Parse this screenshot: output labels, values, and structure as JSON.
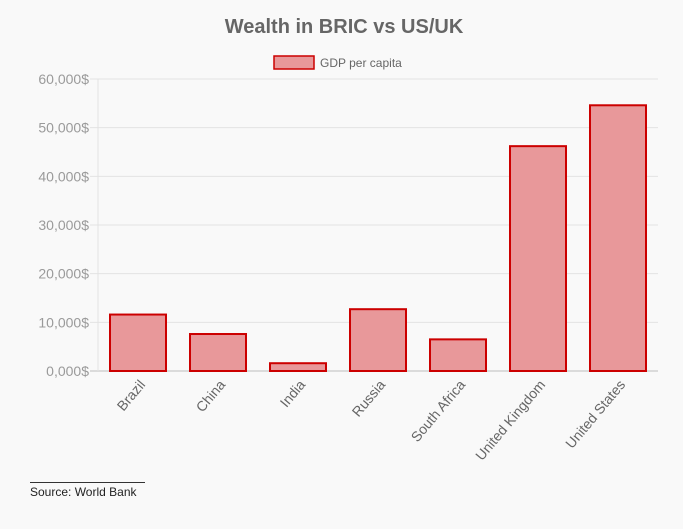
{
  "chart_data": {
    "type": "bar",
    "title": "Wealth in BRIC vs US/UK",
    "categories": [
      "Brazil",
      "China",
      "India",
      "Russia",
      "South Africa",
      "United Kingdom",
      "United States"
    ],
    "series": [
      {
        "name": "GDP per capita",
        "values": [
          11600,
          7600,
          1600,
          12700,
          6500,
          46200,
          54600
        ]
      }
    ],
    "ylim": [
      0,
      60000
    ],
    "y_ticks": [
      0,
      10000,
      20000,
      30000,
      40000,
      50000,
      60000
    ],
    "y_tick_labels": [
      "0,000$",
      "10,000$",
      "20,000$",
      "30,000$",
      "40,000$",
      "50,000$",
      "60,000$"
    ],
    "grid": true,
    "legend_position": "top-center",
    "colors": {
      "bar_fill": "#e8989a",
      "bar_stroke": "#cc0000",
      "grid": "#e3e3e3",
      "axis": "#bdbdbd"
    }
  },
  "source": "Source: World Bank"
}
